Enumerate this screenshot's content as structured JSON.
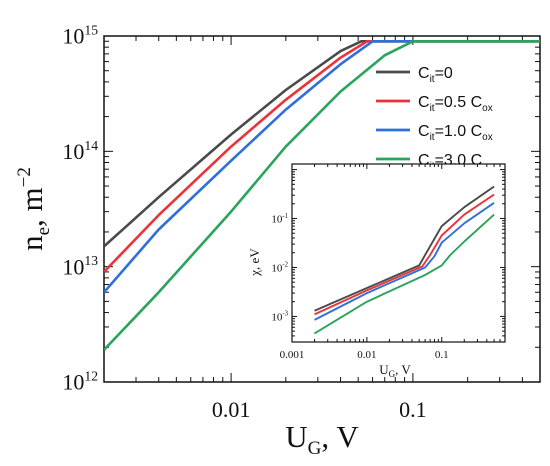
{
  "chart_data": [
    {
      "type": "line",
      "xlabel": {
        "main": "U",
        "sub": "G",
        "rest": ", V"
      },
      "ylabel": {
        "main": "n",
        "sub": "e",
        "rest": ", m",
        "sup": "−2"
      },
      "xscale": "log",
      "yscale": "log",
      "xlim": [
        0.002,
        0.5
      ],
      "ylim": [
        1000000000000.0,
        1000000000000000.0
      ],
      "x_ticks": [
        {
          "value": 0.01,
          "label": "0.01"
        },
        {
          "value": 0.1,
          "label": "0.1"
        }
      ],
      "y_ticks": [
        {
          "value": 1000000000000.0,
          "base": "10",
          "exp": "12"
        },
        {
          "value": 10000000000000.0,
          "base": "10",
          "exp": "13"
        },
        {
          "value": 100000000000000.0,
          "base": "10",
          "exp": "14"
        },
        {
          "value": 1000000000000000.0,
          "base": "10",
          "exp": "15"
        }
      ],
      "legend_position": "top-right",
      "series": [
        {
          "name": "C_it=0",
          "legend": {
            "pre": "C",
            "sub": "it",
            "post": "=0",
            "sub2": ""
          },
          "color": "#4a4a4a",
          "points": [
            [
              0.002,
              15000000000000.0
            ],
            [
              0.004,
              40000000000000.0
            ],
            [
              0.01,
              140000000000000.0
            ],
            [
              0.02,
              340000000000000.0
            ],
            [
              0.04,
              740000000000000.0
            ],
            [
              0.052,
              900000000000000.0
            ],
            [
              0.5,
              900000000000000.0
            ]
          ]
        },
        {
          "name": "C_it=0.5 C_ox",
          "legend": {
            "pre": "C",
            "sub": "it",
            "post": "=0.5 C",
            "sub2": "ox"
          },
          "color": "#e8333a",
          "points": [
            [
              0.002,
              9000000000000.0
            ],
            [
              0.004,
              28000000000000.0
            ],
            [
              0.01,
              110000000000000.0
            ],
            [
              0.02,
              280000000000000.0
            ],
            [
              0.04,
              650000000000000.0
            ],
            [
              0.056,
              900000000000000.0
            ],
            [
              0.5,
              900000000000000.0
            ]
          ]
        },
        {
          "name": "C_it=1.0 C_ox",
          "legend": {
            "pre": "C",
            "sub": "it",
            "post": "=1.0 C",
            "sub2": "ox"
          },
          "color": "#2e6fdc",
          "points": [
            [
              0.002,
              6000000000000.0
            ],
            [
              0.004,
              21000000000000.0
            ],
            [
              0.01,
              83000000000000.0
            ],
            [
              0.02,
              230000000000000.0
            ],
            [
              0.04,
              570000000000000.0
            ],
            [
              0.06,
              900000000000000.0
            ],
            [
              0.5,
              900000000000000.0
            ]
          ]
        },
        {
          "name": "C_it=3.0 C_ox",
          "legend": {
            "pre": "C",
            "sub": "it",
            "post": "=3.0 C",
            "sub2": "ox"
          },
          "color": "#2aa45a",
          "points": [
            [
              0.002,
              1900000000000.0
            ],
            [
              0.004,
              6000000000000.0
            ],
            [
              0.01,
              30000000000000.0
            ],
            [
              0.02,
              110000000000000.0
            ],
            [
              0.04,
              330000000000000.0
            ],
            [
              0.07,
              680000000000000.0
            ],
            [
              0.1,
              900000000000000.0
            ],
            [
              0.5,
              900000000000000.0
            ]
          ]
        }
      ]
    },
    {
      "type": "line",
      "inset": true,
      "xlabel": {
        "main": "U",
        "sub": "G",
        "rest": ", V"
      },
      "ylabel": {
        "main": "χ",
        "rest": ", eV"
      },
      "xscale": "log",
      "yscale": "log",
      "xlim": [
        0.001,
        0.7
      ],
      "ylim": [
        0.0003,
        1.3
      ],
      "x_ticks": [
        {
          "value": 0.001,
          "label": "0.001"
        },
        {
          "value": 0.01,
          "label": "0.01"
        },
        {
          "value": 0.1,
          "label": "0.1"
        }
      ],
      "y_ticks": [
        {
          "value": 0.001,
          "base": "10",
          "exp": "-3"
        },
        {
          "value": 0.01,
          "base": "10",
          "exp": "-2"
        },
        {
          "value": 0.1,
          "base": "10",
          "exp": "-1"
        }
      ],
      "series": [
        {
          "name": "C_it=0",
          "color": "#4a4a4a",
          "points": [
            [
              0.002,
              0.0013
            ],
            [
              0.01,
              0.0038
            ],
            [
              0.05,
              0.011
            ],
            [
              0.06,
              0.018
            ],
            [
              0.1,
              0.07
            ],
            [
              0.2,
              0.17
            ],
            [
              0.5,
              0.45
            ]
          ]
        },
        {
          "name": "C_it=0.5 C_ox",
          "color": "#e8333a",
          "points": [
            [
              0.002,
              0.0011
            ],
            [
              0.01,
              0.0034
            ],
            [
              0.055,
              0.0105
            ],
            [
              0.07,
              0.018
            ],
            [
              0.1,
              0.045
            ],
            [
              0.2,
              0.12
            ],
            [
              0.5,
              0.31
            ]
          ]
        },
        {
          "name": "C_it=1.0 C_ox",
          "color": "#2e6fdc",
          "points": [
            [
              0.002,
              0.00085
            ],
            [
              0.01,
              0.003
            ],
            [
              0.06,
              0.01
            ],
            [
              0.08,
              0.017
            ],
            [
              0.1,
              0.032
            ],
            [
              0.2,
              0.08
            ],
            [
              0.5,
              0.21
            ]
          ]
        },
        {
          "name": "C_it=3.0 C_ox",
          "color": "#2aa45a",
          "points": [
            [
              0.002,
              0.00045
            ],
            [
              0.01,
              0.002
            ],
            [
              0.06,
              0.007
            ],
            [
              0.1,
              0.011
            ],
            [
              0.13,
              0.018
            ],
            [
              0.2,
              0.034
            ],
            [
              0.5,
              0.12
            ]
          ]
        }
      ]
    }
  ]
}
